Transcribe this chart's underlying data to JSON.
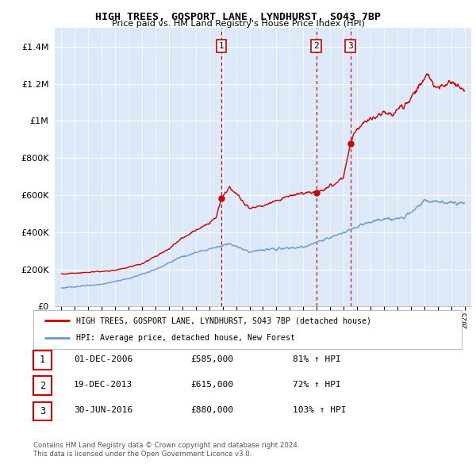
{
  "title": "HIGH TREES, GOSPORT LANE, LYNDHURST, SO43 7BP",
  "subtitle": "Price paid vs. HM Land Registry's House Price Index (HPI)",
  "ylim": [
    0,
    1500000
  ],
  "yticks": [
    0,
    200000,
    400000,
    600000,
    800000,
    1000000,
    1200000,
    1400000
  ],
  "sales": [
    {
      "date_num": 2006.92,
      "price": 585000,
      "label": "1"
    },
    {
      "date_num": 2013.96,
      "price": 615000,
      "label": "2"
    },
    {
      "date_num": 2016.5,
      "price": 880000,
      "label": "3"
    }
  ],
  "legend_house": "HIGH TREES, GOSPORT LANE, LYNDHURST, SO43 7BP (detached house)",
  "legend_hpi": "HPI: Average price, detached house, New Forest",
  "table": [
    {
      "num": "1",
      "date": "01-DEC-2006",
      "price": "£585,000",
      "hpi": "81% ↑ HPI"
    },
    {
      "num": "2",
      "date": "19-DEC-2013",
      "price": "£615,000",
      "hpi": "72% ↑ HPI"
    },
    {
      "num": "3",
      "date": "30-JUN-2016",
      "price": "£880,000",
      "hpi": "103% ↑ HPI"
    }
  ],
  "footnote1": "Contains HM Land Registry data © Crown copyright and database right 2024.",
  "footnote2": "This data is licensed under the Open Government Licence v3.0.",
  "house_color": "#cc0000",
  "hpi_color": "#6699cc",
  "vline_color": "#cc0000",
  "grid_color": "#cccccc",
  "background_color": "#ffffff",
  "plot_bg_color": "#dde8f8"
}
